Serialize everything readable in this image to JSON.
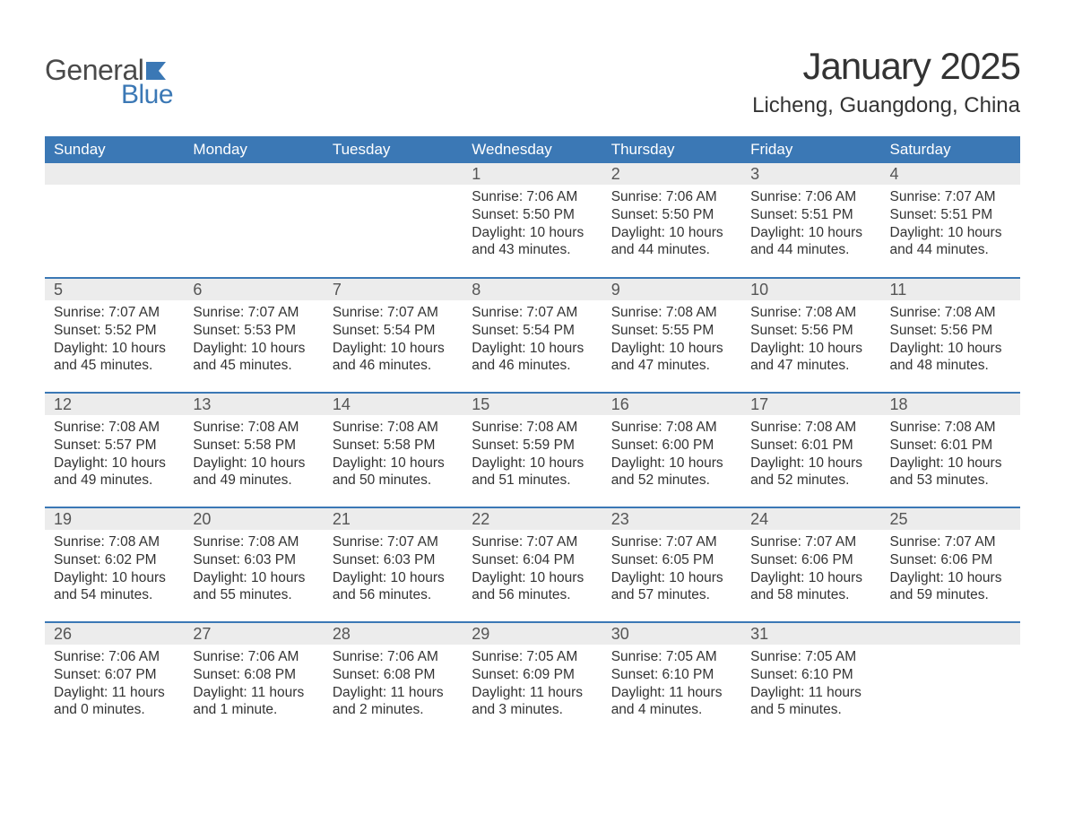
{
  "logo": {
    "word1": "General",
    "word2": "Blue",
    "flag_color": "#3b78b5"
  },
  "title": "January 2025",
  "location": "Licheng, Guangdong, China",
  "colors": {
    "header_bg": "#3b78b5",
    "header_text": "#ffffff",
    "daynum_bg": "#ececec",
    "daynum_text": "#555555",
    "body_text": "#333333",
    "rule": "#3b78b5",
    "page_bg": "#ffffff"
  },
  "day_headers": [
    "Sunday",
    "Monday",
    "Tuesday",
    "Wednesday",
    "Thursday",
    "Friday",
    "Saturday"
  ],
  "labels": {
    "sunrise": "Sunrise: ",
    "sunset": "Sunset: ",
    "daylight": "Daylight: "
  },
  "weeks": [
    [
      null,
      null,
      null,
      {
        "n": "1",
        "sunrise": "7:06 AM",
        "sunset": "5:50 PM",
        "daylight": "10 hours and 43 minutes."
      },
      {
        "n": "2",
        "sunrise": "7:06 AM",
        "sunset": "5:50 PM",
        "daylight": "10 hours and 44 minutes."
      },
      {
        "n": "3",
        "sunrise": "7:06 AM",
        "sunset": "5:51 PM",
        "daylight": "10 hours and 44 minutes."
      },
      {
        "n": "4",
        "sunrise": "7:07 AM",
        "sunset": "5:51 PM",
        "daylight": "10 hours and 44 minutes."
      }
    ],
    [
      {
        "n": "5",
        "sunrise": "7:07 AM",
        "sunset": "5:52 PM",
        "daylight": "10 hours and 45 minutes."
      },
      {
        "n": "6",
        "sunrise": "7:07 AM",
        "sunset": "5:53 PM",
        "daylight": "10 hours and 45 minutes."
      },
      {
        "n": "7",
        "sunrise": "7:07 AM",
        "sunset": "5:54 PM",
        "daylight": "10 hours and 46 minutes."
      },
      {
        "n": "8",
        "sunrise": "7:07 AM",
        "sunset": "5:54 PM",
        "daylight": "10 hours and 46 minutes."
      },
      {
        "n": "9",
        "sunrise": "7:08 AM",
        "sunset": "5:55 PM",
        "daylight": "10 hours and 47 minutes."
      },
      {
        "n": "10",
        "sunrise": "7:08 AM",
        "sunset": "5:56 PM",
        "daylight": "10 hours and 47 minutes."
      },
      {
        "n": "11",
        "sunrise": "7:08 AM",
        "sunset": "5:56 PM",
        "daylight": "10 hours and 48 minutes."
      }
    ],
    [
      {
        "n": "12",
        "sunrise": "7:08 AM",
        "sunset": "5:57 PM",
        "daylight": "10 hours and 49 minutes."
      },
      {
        "n": "13",
        "sunrise": "7:08 AM",
        "sunset": "5:58 PM",
        "daylight": "10 hours and 49 minutes."
      },
      {
        "n": "14",
        "sunrise": "7:08 AM",
        "sunset": "5:58 PM",
        "daylight": "10 hours and 50 minutes."
      },
      {
        "n": "15",
        "sunrise": "7:08 AM",
        "sunset": "5:59 PM",
        "daylight": "10 hours and 51 minutes."
      },
      {
        "n": "16",
        "sunrise": "7:08 AM",
        "sunset": "6:00 PM",
        "daylight": "10 hours and 52 minutes."
      },
      {
        "n": "17",
        "sunrise": "7:08 AM",
        "sunset": "6:01 PM",
        "daylight": "10 hours and 52 minutes."
      },
      {
        "n": "18",
        "sunrise": "7:08 AM",
        "sunset": "6:01 PM",
        "daylight": "10 hours and 53 minutes."
      }
    ],
    [
      {
        "n": "19",
        "sunrise": "7:08 AM",
        "sunset": "6:02 PM",
        "daylight": "10 hours and 54 minutes."
      },
      {
        "n": "20",
        "sunrise": "7:08 AM",
        "sunset": "6:03 PM",
        "daylight": "10 hours and 55 minutes."
      },
      {
        "n": "21",
        "sunrise": "7:07 AM",
        "sunset": "6:03 PM",
        "daylight": "10 hours and 56 minutes."
      },
      {
        "n": "22",
        "sunrise": "7:07 AM",
        "sunset": "6:04 PM",
        "daylight": "10 hours and 56 minutes."
      },
      {
        "n": "23",
        "sunrise": "7:07 AM",
        "sunset": "6:05 PM",
        "daylight": "10 hours and 57 minutes."
      },
      {
        "n": "24",
        "sunrise": "7:07 AM",
        "sunset": "6:06 PM",
        "daylight": "10 hours and 58 minutes."
      },
      {
        "n": "25",
        "sunrise": "7:07 AM",
        "sunset": "6:06 PM",
        "daylight": "10 hours and 59 minutes."
      }
    ],
    [
      {
        "n": "26",
        "sunrise": "7:06 AM",
        "sunset": "6:07 PM",
        "daylight": "11 hours and 0 minutes."
      },
      {
        "n": "27",
        "sunrise": "7:06 AM",
        "sunset": "6:08 PM",
        "daylight": "11 hours and 1 minute."
      },
      {
        "n": "28",
        "sunrise": "7:06 AM",
        "sunset": "6:08 PM",
        "daylight": "11 hours and 2 minutes."
      },
      {
        "n": "29",
        "sunrise": "7:05 AM",
        "sunset": "6:09 PM",
        "daylight": "11 hours and 3 minutes."
      },
      {
        "n": "30",
        "sunrise": "7:05 AM",
        "sunset": "6:10 PM",
        "daylight": "11 hours and 4 minutes."
      },
      {
        "n": "31",
        "sunrise": "7:05 AM",
        "sunset": "6:10 PM",
        "daylight": "11 hours and 5 minutes."
      },
      null
    ]
  ]
}
